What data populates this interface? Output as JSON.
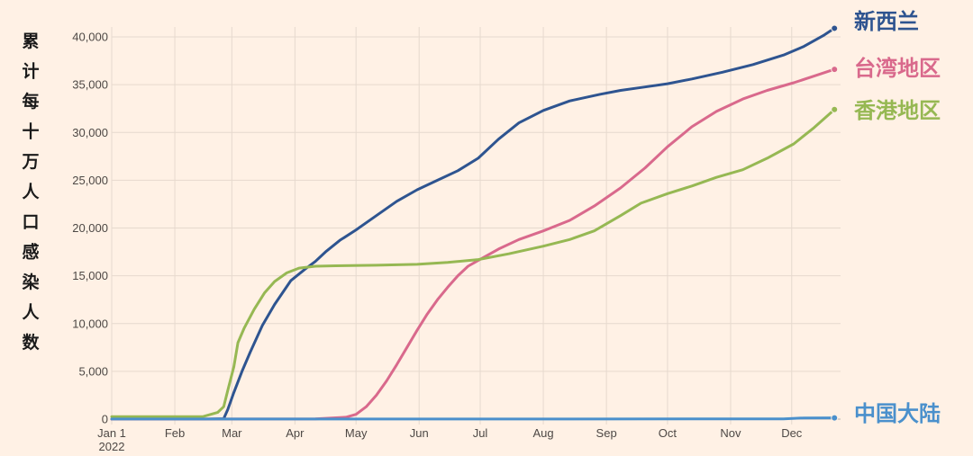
{
  "chart_data": {
    "type": "line",
    "ylabel": "累计每十万人口感染人数",
    "xlabel": "",
    "title": "",
    "ylim": [
      0,
      40000
    ],
    "yticks": [
      {
        "value": 0,
        "label": "0"
      },
      {
        "value": 5000,
        "label": "5,000"
      },
      {
        "value": 10000,
        "label": "10,000"
      },
      {
        "value": 15000,
        "label": "15,000"
      },
      {
        "value": 20000,
        "label": "20,000"
      },
      {
        "value": 25000,
        "label": "25,000"
      },
      {
        "value": 30000,
        "label": "30,000"
      },
      {
        "value": 35000,
        "label": "35,000"
      },
      {
        "value": 40000,
        "label": "40,000"
      }
    ],
    "xlim": [
      0,
      358
    ],
    "xticks": [
      {
        "day": 0,
        "label": "Jan 1",
        "sub": "2022"
      },
      {
        "day": 31,
        "label": "Feb"
      },
      {
        "day": 59,
        "label": "Mar"
      },
      {
        "day": 90,
        "label": "Apr"
      },
      {
        "day": 120,
        "label": "May"
      },
      {
        "day": 151,
        "label": "Jun"
      },
      {
        "day": 181,
        "label": "Jul"
      },
      {
        "day": 212,
        "label": "Aug"
      },
      {
        "day": 243,
        "label": "Sep"
      },
      {
        "day": 273,
        "label": "Oct"
      },
      {
        "day": 304,
        "label": "Nov"
      },
      {
        "day": 334,
        "label": "Dec"
      }
    ],
    "grid": true,
    "series": [
      {
        "name": "新西兰",
        "color": "#2e5490",
        "points": [
          [
            0,
            0
          ],
          [
            45,
            0
          ],
          [
            55,
            50
          ],
          [
            57,
            1000
          ],
          [
            60,
            2800
          ],
          [
            64,
            5000
          ],
          [
            68,
            7000
          ],
          [
            74,
            9800
          ],
          [
            80,
            12000
          ],
          [
            88,
            14500
          ],
          [
            95,
            15700
          ],
          [
            100,
            16500
          ],
          [
            105,
            17500
          ],
          [
            112,
            18700
          ],
          [
            120,
            19800
          ],
          [
            130,
            21300
          ],
          [
            140,
            22800
          ],
          [
            150,
            24000
          ],
          [
            160,
            25000
          ],
          [
            170,
            26000
          ],
          [
            180,
            27300
          ],
          [
            190,
            29300
          ],
          [
            200,
            31000
          ],
          [
            212,
            32300
          ],
          [
            225,
            33300
          ],
          [
            240,
            34000
          ],
          [
            250,
            34400
          ],
          [
            260,
            34700
          ],
          [
            273,
            35100
          ],
          [
            285,
            35600
          ],
          [
            300,
            36300
          ],
          [
            315,
            37100
          ],
          [
            330,
            38100
          ],
          [
            340,
            39000
          ],
          [
            350,
            40200
          ],
          [
            355,
            40900
          ]
        ]
      },
      {
        "name": "台湾地区",
        "color": "#d9698c",
        "points": [
          [
            0,
            0
          ],
          [
            100,
            30
          ],
          [
            115,
            200
          ],
          [
            120,
            500
          ],
          [
            125,
            1300
          ],
          [
            130,
            2500
          ],
          [
            135,
            4000
          ],
          [
            140,
            5700
          ],
          [
            145,
            7500
          ],
          [
            150,
            9300
          ],
          [
            155,
            11000
          ],
          [
            160,
            12500
          ],
          [
            165,
            13800
          ],
          [
            170,
            15000
          ],
          [
            175,
            16000
          ],
          [
            180,
            16600
          ],
          [
            190,
            17800
          ],
          [
            200,
            18800
          ],
          [
            212,
            19700
          ],
          [
            225,
            20800
          ],
          [
            237,
            22300
          ],
          [
            250,
            24200
          ],
          [
            262,
            26300
          ],
          [
            273,
            28500
          ],
          [
            285,
            30600
          ],
          [
            297,
            32200
          ],
          [
            310,
            33500
          ],
          [
            322,
            34400
          ],
          [
            335,
            35200
          ],
          [
            345,
            35900
          ],
          [
            355,
            36600
          ]
        ]
      },
      {
        "name": "香港地区",
        "color": "#96b853",
        "points": [
          [
            0,
            250
          ],
          [
            30,
            250
          ],
          [
            45,
            270
          ],
          [
            52,
            700
          ],
          [
            55,
            1300
          ],
          [
            57,
            3000
          ],
          [
            60,
            5500
          ],
          [
            62,
            8000
          ],
          [
            65,
            9500
          ],
          [
            70,
            11500
          ],
          [
            75,
            13200
          ],
          [
            80,
            14400
          ],
          [
            86,
            15300
          ],
          [
            92,
            15800
          ],
          [
            100,
            16000
          ],
          [
            110,
            16050
          ],
          [
            130,
            16100
          ],
          [
            150,
            16200
          ],
          [
            165,
            16400
          ],
          [
            180,
            16700
          ],
          [
            195,
            17300
          ],
          [
            212,
            18100
          ],
          [
            225,
            18800
          ],
          [
            237,
            19700
          ],
          [
            250,
            21300
          ],
          [
            260,
            22600
          ],
          [
            273,
            23600
          ],
          [
            285,
            24400
          ],
          [
            297,
            25300
          ],
          [
            310,
            26100
          ],
          [
            322,
            27300
          ],
          [
            335,
            28800
          ],
          [
            345,
            30500
          ],
          [
            355,
            32400
          ]
        ]
      },
      {
        "name": "中国大陆",
        "color": "#4a90cc",
        "points": [
          [
            0,
            10
          ],
          [
            300,
            15
          ],
          [
            330,
            30
          ],
          [
            340,
            120
          ],
          [
            355,
            130
          ]
        ]
      }
    ]
  }
}
